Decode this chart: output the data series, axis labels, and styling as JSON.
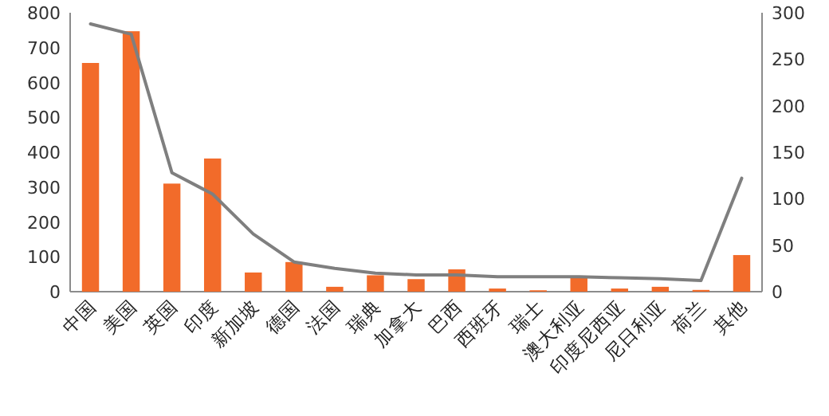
{
  "chart_data": {
    "type": "bar",
    "categories": [
      "中国",
      "美国",
      "英国",
      "印度",
      "新加坡",
      "德国",
      "法国",
      "瑞典",
      "加拿大",
      "巴西",
      "西班牙",
      "瑞士",
      "澳大利亚",
      "印度尼西亚",
      "尼日利亚",
      "荷兰",
      "其他"
    ],
    "series": [
      {
        "color": "#f26b2a",
        "values": [
          656,
          747,
          310,
          382,
          55,
          85,
          14,
          47,
          36,
          64,
          9,
          4,
          44,
          9,
          14,
          5,
          105
        ]
      },
      {
        "type": "line",
        "axis": "y2",
        "color": "#7f7f7f",
        "values": [
          288,
          277,
          128,
          105,
          62,
          32,
          25,
          20,
          18,
          18,
          16,
          16,
          16,
          15,
          14,
          12,
          122
        ]
      }
    ],
    "ylim": [
      0,
      800
    ],
    "yticks": [
      0,
      100,
      200,
      300,
      400,
      500,
      600,
      700,
      800
    ],
    "y2lim": [
      0,
      300
    ],
    "y2ticks": [
      0,
      50,
      100,
      150,
      200,
      250,
      300
    ],
    "grid": false
  }
}
